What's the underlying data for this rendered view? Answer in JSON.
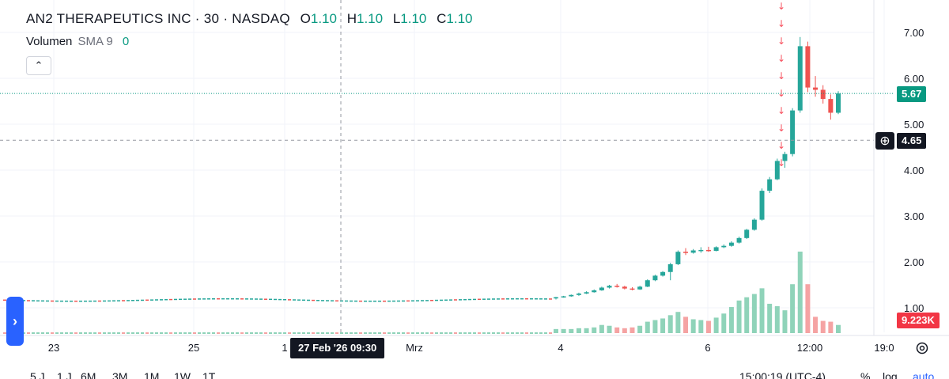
{
  "legend": {
    "symbol": "AN2 THERAPEUTICS INC · 30 · NASDAQ",
    "open_label": "O",
    "open": "1.10",
    "high_label": "H",
    "high": "1.10",
    "low_label": "L",
    "low": "1.10",
    "close_label": "C",
    "close": "1.10"
  },
  "volume_legend": {
    "label": "Volumen",
    "sma": "SMA 9",
    "value": "0"
  },
  "price_tags": {
    "last_price": "5.67",
    "crosshair_price": "4.65",
    "volume_value": "9.223K"
  },
  "crosshair_time": "27 Feb '26   09:30",
  "x_axis_labels": [
    "23",
    "25",
    "1",
    "Mrz",
    "4",
    "6",
    "12:00",
    "19:0"
  ],
  "y_axis_labels": [
    "7.00",
    "6.00",
    "5.00",
    "4.00",
    "3.00",
    "2.00",
    "1.00"
  ],
  "bottom_bar": {
    "ranges": [
      "5 J",
      "1 J",
      "6M",
      "3M",
      "1M",
      "1W",
      "1T"
    ],
    "time": "15:00:19 (UTC-4)",
    "percent": "%",
    "log": "log",
    "auto": "auto"
  },
  "colors": {
    "up": "#26a69a",
    "down": "#ef5350",
    "volume_up": "#8fd3b9",
    "volume_down": "#f5a3a3",
    "last_price_tag": "#089981",
    "volume_tag": "#f23645",
    "crosshair_tag": "#131722",
    "marker": "#f7525f"
  },
  "chart_data": {
    "type": "candlestick",
    "ylim": [
      0.85,
      7.4
    ],
    "y_ticks": [
      1,
      2,
      3,
      4,
      5,
      6,
      7
    ],
    "last_price": 5.67,
    "crosshair_price": 4.65,
    "candles": [
      {
        "o": 1.21,
        "h": 1.24,
        "l": 1.18,
        "c": 1.23
      },
      {
        "o": 1.23,
        "h": 1.26,
        "l": 1.22,
        "c": 1.25
      },
      {
        "o": 1.25,
        "h": 1.29,
        "l": 1.24,
        "c": 1.28
      },
      {
        "o": 1.28,
        "h": 1.33,
        "l": 1.26,
        "c": 1.31
      },
      {
        "o": 1.31,
        "h": 1.36,
        "l": 1.3,
        "c": 1.34
      },
      {
        "o": 1.34,
        "h": 1.4,
        "l": 1.33,
        "c": 1.38
      },
      {
        "o": 1.38,
        "h": 1.46,
        "l": 1.37,
        "c": 1.44
      },
      {
        "o": 1.44,
        "h": 1.5,
        "l": 1.42,
        "c": 1.48
      },
      {
        "o": 1.48,
        "h": 1.52,
        "l": 1.44,
        "c": 1.46
      },
      {
        "o": 1.46,
        "h": 1.48,
        "l": 1.4,
        "c": 1.42
      },
      {
        "o": 1.42,
        "h": 1.45,
        "l": 1.38,
        "c": 1.4
      },
      {
        "o": 1.4,
        "h": 1.48,
        "l": 1.39,
        "c": 1.46
      },
      {
        "o": 1.46,
        "h": 1.62,
        "l": 1.45,
        "c": 1.6
      },
      {
        "o": 1.6,
        "h": 1.72,
        "l": 1.58,
        "c": 1.7
      },
      {
        "o": 1.7,
        "h": 1.8,
        "l": 1.68,
        "c": 1.78
      },
      {
        "o": 1.78,
        "h": 1.98,
        "l": 1.6,
        "c": 1.95
      },
      {
        "o": 1.95,
        "h": 2.25,
        "l": 1.93,
        "c": 2.22
      },
      {
        "o": 2.22,
        "h": 2.3,
        "l": 2.15,
        "c": 2.2
      },
      {
        "o": 2.2,
        "h": 2.28,
        "l": 2.18,
        "c": 2.25
      },
      {
        "o": 2.25,
        "h": 2.32,
        "l": 2.2,
        "c": 2.26
      },
      {
        "o": 2.26,
        "h": 2.33,
        "l": 2.22,
        "c": 2.24
      },
      {
        "o": 2.24,
        "h": 2.34,
        "l": 2.23,
        "c": 2.32
      },
      {
        "o": 2.32,
        "h": 2.38,
        "l": 2.3,
        "c": 2.35
      },
      {
        "o": 2.35,
        "h": 2.45,
        "l": 2.33,
        "c": 2.42
      },
      {
        "o": 2.42,
        "h": 2.55,
        "l": 2.4,
        "c": 2.52
      },
      {
        "o": 2.52,
        "h": 2.72,
        "l": 2.5,
        "c": 2.7
      },
      {
        "o": 2.7,
        "h": 2.95,
        "l": 2.68,
        "c": 2.92
      },
      {
        "o": 2.92,
        "h": 3.6,
        "l": 2.9,
        "c": 3.55
      },
      {
        "o": 3.55,
        "h": 3.85,
        "l": 3.5,
        "c": 3.8
      },
      {
        "o": 3.8,
        "h": 4.25,
        "l": 3.78,
        "c": 4.2
      },
      {
        "o": 4.2,
        "h": 4.4,
        "l": 4.05,
        "c": 4.35
      },
      {
        "o": 4.35,
        "h": 5.35,
        "l": 4.3,
        "c": 5.3
      },
      {
        "o": 5.3,
        "h": 6.9,
        "l": 5.25,
        "c": 6.7
      },
      {
        "o": 6.7,
        "h": 6.8,
        "l": 5.7,
        "c": 5.8
      },
      {
        "o": 5.8,
        "h": 6.05,
        "l": 5.6,
        "c": 5.75
      },
      {
        "o": 5.75,
        "h": 5.85,
        "l": 5.45,
        "c": 5.55
      },
      {
        "o": 5.55,
        "h": 5.65,
        "l": 5.1,
        "c": 5.25
      },
      {
        "o": 5.25,
        "h": 5.72,
        "l": 5.22,
        "c": 5.67
      }
    ],
    "volumes": [
      0.05,
      0.05,
      0.05,
      0.06,
      0.06,
      0.07,
      0.1,
      0.09,
      0.07,
      0.06,
      0.07,
      0.09,
      0.14,
      0.16,
      0.18,
      0.22,
      0.26,
      0.2,
      0.17,
      0.16,
      0.15,
      0.19,
      0.24,
      0.32,
      0.4,
      0.44,
      0.48,
      0.55,
      0.36,
      0.33,
      0.28,
      0.6,
      1.0,
      0.6,
      0.2,
      0.15,
      0.14,
      0.1
    ]
  }
}
